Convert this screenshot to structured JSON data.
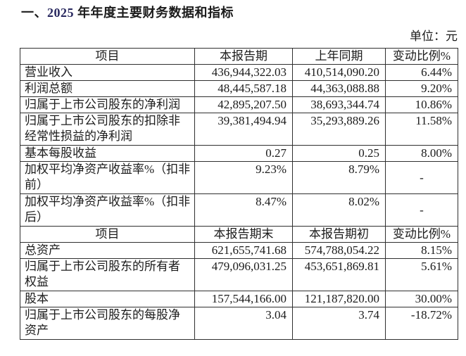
{
  "page": {
    "title_prefix": "一、",
    "title_year": "2025",
    "title_rest": " 年年度主要财务数据和指标",
    "unit_label": "单位：元"
  },
  "colors": {
    "text": "#1b1b1b",
    "border": "#2f2f2f",
    "title_year": "#28285f",
    "background": "#ffffff"
  },
  "table": {
    "sections": [
      {
        "header": [
          "项目",
          "本报告期",
          "上年同期",
          "变动比例%"
        ],
        "rows": [
          {
            "cells": [
              "营业收入",
              "436,944,322.03",
              "410,514,090.20",
              "6.44%"
            ],
            "tall": false
          },
          {
            "cells": [
              "利润总额",
              "48,445,587.18",
              "44,363,088.88",
              "9.20%"
            ],
            "tall": false
          },
          {
            "cells": [
              "归属于上市公司股东的净利润",
              "42,895,207.50",
              "38,693,344.74",
              "10.86%"
            ],
            "tall": false
          },
          {
            "cells": [
              "归属于上市公司股东的扣除非经常性损益的净利润",
              "39,381,494.94",
              "35,293,889.26",
              "11.58%"
            ],
            "tall": true
          },
          {
            "cells": [
              "基本每股收益",
              "0.27",
              "0.25",
              "8.00%"
            ],
            "tall": false
          },
          {
            "cells": [
              "加权平均净资产收益率%（扣非前）",
              "9.23%",
              "8.79%",
              "-"
            ],
            "tall": true
          },
          {
            "cells": [
              "加权平均净资产收益率%（扣非后）",
              "8.47%",
              "8.02%",
              "-"
            ],
            "tall": true
          }
        ]
      },
      {
        "header": [
          "项目",
          "本报告期末",
          "本报告期初",
          "变动比例%"
        ],
        "rows": [
          {
            "cells": [
              "总资产",
              "621,655,741.68",
              "574,788,054.22",
              "8.15%"
            ],
            "tall": false
          },
          {
            "cells": [
              "归属于上市公司股东的所有者权益",
              "479,096,031.25",
              "453,651,869.81",
              "5.61%"
            ],
            "tall": true
          },
          {
            "cells": [
              "股本",
              "157,544,166.00",
              "121,187,820.00",
              "30.00%"
            ],
            "tall": false
          },
          {
            "cells": [
              "归属于上市公司股东的每股净资产",
              "3.04",
              "3.74",
              "-18.72%"
            ],
            "tall": true
          }
        ]
      }
    ]
  }
}
